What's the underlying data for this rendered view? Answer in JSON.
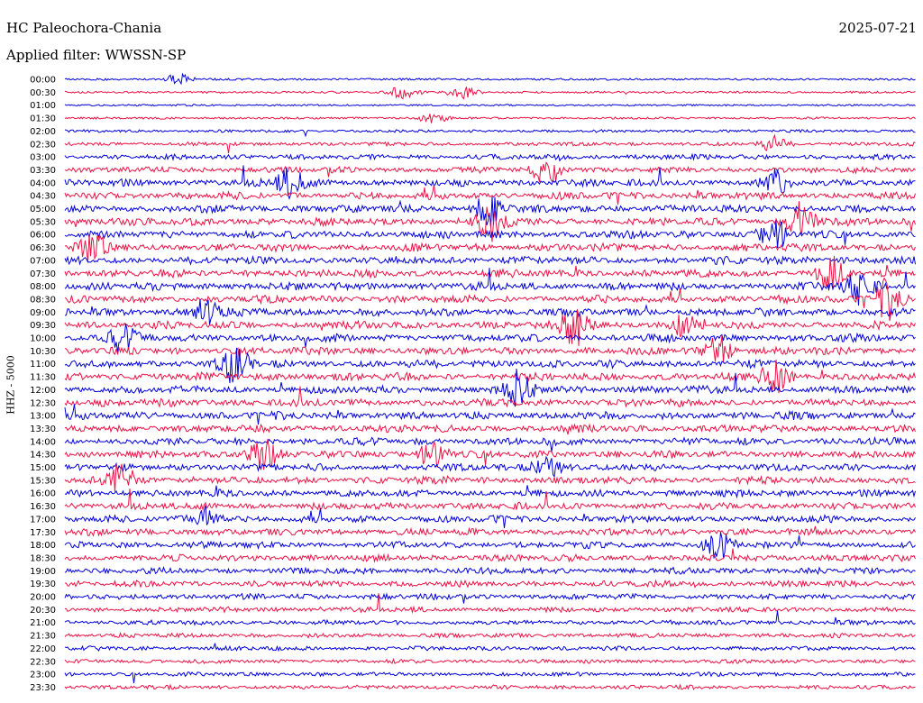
{
  "header": {
    "station": "HC Paleochora-Chania",
    "date": "2025-07-21",
    "filter": "Applied filter: WWSSN-SP"
  },
  "chart_data": {
    "type": "line",
    "title": "HC Paleochora-Chania",
    "ylabel": "HHZ - 5000",
    "colors": [
      "#0000dd",
      "#ee1144"
    ],
    "categories": [
      "00:00",
      "00:30",
      "01:00",
      "01:30",
      "02:00",
      "02:30",
      "03:00",
      "03:30",
      "04:00",
      "04:30",
      "05:00",
      "05:30",
      "06:00",
      "06:30",
      "07:00",
      "07:30",
      "08:00",
      "08:30",
      "09:00",
      "09:30",
      "10:00",
      "10:30",
      "11:00",
      "11:30",
      "12:00",
      "12:30",
      "13:00",
      "13:30",
      "14:00",
      "14:30",
      "15:00",
      "15:30",
      "16:00",
      "16:30",
      "17:00",
      "17:30",
      "18:00",
      "18:30",
      "19:00",
      "19:30",
      "20:00",
      "20:30",
      "21:00",
      "21:30",
      "22:00",
      "22:30",
      "23:00",
      "23:30"
    ],
    "activity": [
      0.15,
      0.15,
      0.1,
      0.15,
      0.25,
      0.4,
      0.6,
      0.75,
      0.9,
      0.95,
      1,
      1,
      1,
      1,
      1,
      1,
      1,
      1,
      1,
      1,
      1,
      1,
      1,
      1,
      1,
      1,
      1,
      0.95,
      0.95,
      0.95,
      0.9,
      0.9,
      0.9,
      0.9,
      0.9,
      0.85,
      0.85,
      0.85,
      0.8,
      0.75,
      0.7,
      0.6,
      0.55,
      0.5,
      0.5,
      0.45,
      0.45,
      0.45
    ],
    "bursts": [
      {
        "row": 0,
        "minute": 4,
        "level": 0.4
      },
      {
        "row": 1,
        "minute": 12,
        "level": 0.6
      },
      {
        "row": 1,
        "minute": 14,
        "level": 0.6
      },
      {
        "row": 3,
        "minute": 13,
        "level": 0.4
      },
      {
        "row": 5,
        "minute": 25,
        "level": 0.6
      },
      {
        "row": 7,
        "minute": 17,
        "level": 1.2
      },
      {
        "row": 8,
        "minute": 8,
        "level": 1.3
      },
      {
        "row": 8,
        "minute": 25,
        "level": 1.0
      },
      {
        "row": 10,
        "minute": 15,
        "level": 1.4
      },
      {
        "row": 11,
        "minute": 15,
        "level": 1.5
      },
      {
        "row": 11,
        "minute": 26,
        "level": 1.6
      },
      {
        "row": 12,
        "minute": 25,
        "level": 1.2
      },
      {
        "row": 13,
        "minute": 1,
        "level": 1.0
      },
      {
        "row": 15,
        "minute": 27,
        "level": 1.3
      },
      {
        "row": 16,
        "minute": 28,
        "level": 1.4
      },
      {
        "row": 17,
        "minute": 29,
        "level": 1.6
      },
      {
        "row": 18,
        "minute": 5,
        "level": 1.4
      },
      {
        "row": 19,
        "minute": 18,
        "level": 1.6
      },
      {
        "row": 19,
        "minute": 22,
        "level": 1.2
      },
      {
        "row": 20,
        "minute": 2,
        "level": 1.0
      },
      {
        "row": 21,
        "minute": 23,
        "level": 1.2
      },
      {
        "row": 22,
        "minute": 6,
        "level": 1.5
      },
      {
        "row": 23,
        "minute": 25,
        "level": 1.2
      },
      {
        "row": 24,
        "minute": 16,
        "level": 1.4
      },
      {
        "row": 29,
        "minute": 7,
        "level": 1.3
      },
      {
        "row": 29,
        "minute": 13,
        "level": 1.2
      },
      {
        "row": 30,
        "minute": 17,
        "level": 1.0
      },
      {
        "row": 31,
        "minute": 2,
        "level": 1.3
      },
      {
        "row": 34,
        "minute": 5,
        "level": 1.0
      },
      {
        "row": 36,
        "minute": 23,
        "level": 1.1
      }
    ]
  }
}
